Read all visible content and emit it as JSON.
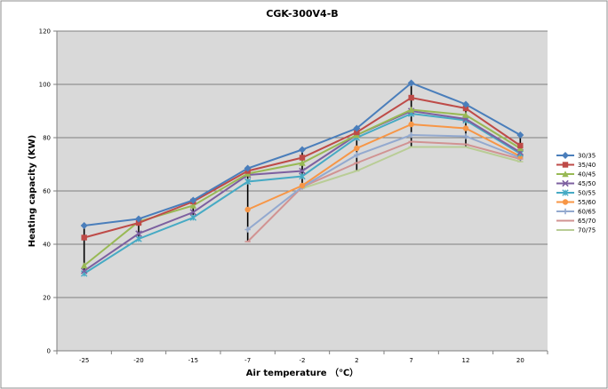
{
  "chart_data": {
    "type": "line",
    "title": "CGK-300V4-B",
    "xlabel": "Air temperature （℃）",
    "ylabel": "Heating capacity (KW)",
    "categories": [
      "-25",
      "-20",
      "-15",
      "-7",
      "-2",
      "2",
      "7",
      "12",
      "20"
    ],
    "ylim": [
      0,
      120
    ],
    "yticks": [
      "0",
      "20",
      "40",
      "60",
      "80",
      "100",
      "120"
    ],
    "grid": true,
    "legend_position": "right",
    "series": [
      {
        "name": "30/35",
        "color": "#4a7ebb",
        "marker": "diamond",
        "values": [
          47,
          49.5,
          56.5,
          68.5,
          75.5,
          83.5,
          100.5,
          92.5,
          81
        ]
      },
      {
        "name": "35/40",
        "color": "#be4b48",
        "marker": "square",
        "values": [
          42.5,
          48,
          56,
          67.5,
          72.5,
          82,
          95,
          91,
          77
        ]
      },
      {
        "name": "40/45",
        "color": "#98b954",
        "marker": "triangle",
        "values": [
          32,
          48.5,
          54.5,
          66.5,
          70.5,
          81,
          90.5,
          88.5,
          76
        ]
      },
      {
        "name": "45/50",
        "color": "#7d60a0",
        "marker": "x",
        "values": [
          30,
          44,
          52,
          66,
          67.5,
          81,
          90,
          87,
          74.5
        ]
      },
      {
        "name": "50/55",
        "color": "#46aac4",
        "marker": "star",
        "values": [
          29,
          42,
          50,
          63.5,
          65.5,
          80,
          89,
          86.5,
          74
        ]
      },
      {
        "name": "55/60",
        "color": "#f79646",
        "marker": "circle",
        "values": [
          null,
          null,
          null,
          53,
          62,
          76,
          85,
          83.5,
          73
        ]
      },
      {
        "name": "60/65",
        "color": "#93a9cf",
        "marker": "plus",
        "values": [
          null,
          null,
          null,
          45.5,
          61.5,
          73.5,
          81,
          80.5,
          72.5
        ]
      },
      {
        "name": "65/70",
        "color": "#d19392",
        "marker": "dash",
        "values": [
          null,
          null,
          null,
          41,
          61.5,
          70.5,
          78.5,
          77.5,
          72
        ]
      },
      {
        "name": "70/75",
        "color": "#b9cd96",
        "marker": "dash",
        "values": [
          null,
          null,
          null,
          null,
          61,
          67.5,
          76.5,
          76.5,
          71
        ]
      }
    ]
  }
}
